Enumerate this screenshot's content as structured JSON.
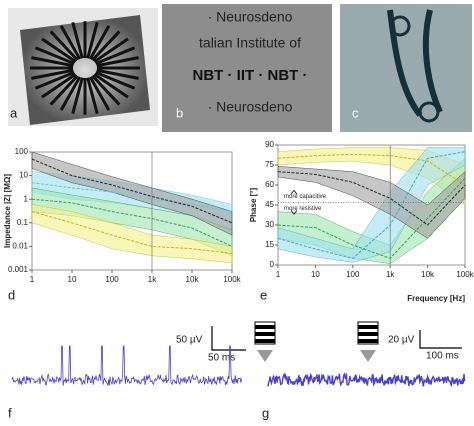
{
  "panel_labels": [
    "a",
    "b",
    "c",
    "d",
    "e",
    "f",
    "g"
  ],
  "photo_text": [
    "· Neurosdeno",
    "talian Institute of",
    "NBT · IIT · NBT ·",
    "· Neurosdeno"
  ],
  "scale_bars": {
    "f": [
      "50 µV",
      "50 ms"
    ],
    "g": [
      "20 µV",
      "100 ms"
    ]
  },
  "chart_data": [
    {
      "type": "line",
      "ylabel": "Impedance |Z| [MΩ]",
      "xlog": true,
      "ylog": true,
      "xlim": [
        1,
        100000
      ],
      "ylim": [
        0.001,
        100
      ],
      "xticks": [
        1,
        10,
        100,
        {
          "value": 1000,
          "label": "1k"
        },
        {
          "value": 10000,
          "label": "10k"
        },
        {
          "value": 100000,
          "label": "100k"
        }
      ],
      "yticks": [
        0.001,
        0.01,
        0.1,
        1,
        10,
        100
      ],
      "vline": 1000,
      "x": [
        1,
        10,
        100,
        1000,
        10000,
        100000
      ],
      "series": [
        {
          "color": "#5bc8e0",
          "band_color": "#9fe0ee",
          "values": [
            5,
            3,
            2,
            1,
            0.6,
            0.3
          ],
          "upper": [
            15,
            10,
            6,
            3,
            1.5,
            0.6
          ],
          "lower": [
            2,
            1,
            0.7,
            0.4,
            0.2,
            0.05
          ]
        },
        {
          "color": "#2e9e5a",
          "band_color": "#9fe6b0",
          "values": [
            1,
            0.7,
            0.3,
            0.15,
            0.06,
            0.01
          ],
          "upper": [
            3,
            1.5,
            0.8,
            0.4,
            0.2,
            0.05
          ],
          "lower": [
            0.3,
            0.2,
            0.1,
            0.05,
            0.02,
            0.004
          ]
        },
        {
          "color": "#c9b400",
          "band_color": "#f5f08a",
          "values": [
            0.3,
            0.1,
            0.03,
            0.01,
            0.008,
            0.005
          ],
          "upper": [
            0.6,
            0.3,
            0.1,
            0.03,
            0.02,
            0.01
          ],
          "lower": [
            0.1,
            0.03,
            0.008,
            0.004,
            0.003,
            0.002
          ]
        },
        {
          "color": "#222222",
          "band_color": "#a0a0a0",
          "values": [
            50,
            10,
            4,
            1.3,
            0.5,
            0.1
          ],
          "upper": [
            100,
            30,
            9,
            3,
            1,
            0.3
          ],
          "lower": [
            20,
            5,
            2,
            0.6,
            0.2,
            0.03
          ]
        }
      ]
    },
    {
      "type": "line",
      "ylabel": "Phase [°]",
      "xlabel": "Frequency [Hz]",
      "xlog": true,
      "ylog": false,
      "xlim": [
        1,
        100000
      ],
      "ylim": [
        0,
        90
      ],
      "xticks": [
        1,
        10,
        100,
        {
          "value": 1000,
          "label": "1k"
        },
        {
          "value": 10000,
          "label": "10k"
        },
        {
          "value": 100000,
          "label": "100k"
        }
      ],
      "yticks": [
        0,
        15,
        30,
        45,
        60,
        75,
        90
      ],
      "vline": 1000,
      "hline": 47,
      "annotations": [
        "more capacitive",
        "more resistive"
      ],
      "x": [
        1,
        10,
        100,
        1000,
        10000,
        100000
      ],
      "series": [
        {
          "color": "#c9b400",
          "band_color": "#f5f08a",
          "values": [
            80,
            82,
            83,
            82,
            78,
            60
          ],
          "upper": [
            85,
            87,
            88,
            88,
            86,
            75
          ],
          "lower": [
            75,
            77,
            78,
            75,
            65,
            45
          ]
        },
        {
          "color": "#2e9e5a",
          "band_color": "#9fe6b0",
          "values": [
            30,
            28,
            15,
            5,
            35,
            65
          ],
          "upper": [
            40,
            38,
            25,
            15,
            55,
            80
          ],
          "lower": [
            20,
            15,
            5,
            1,
            20,
            50
          ]
        },
        {
          "color": "#3aa8c8",
          "band_color": "#9fe0ee",
          "values": [
            20,
            12,
            5,
            30,
            80,
            85
          ],
          "upper": [
            28,
            20,
            12,
            55,
            88,
            88
          ],
          "lower": [
            12,
            6,
            2,
            10,
            60,
            75
          ]
        },
        {
          "color": "#222222",
          "band_color": "#a0a0a0",
          "values": [
            70,
            68,
            62,
            50,
            30,
            60
          ],
          "upper": [
            74,
            72,
            70,
            62,
            45,
            70
          ],
          "lower": [
            66,
            62,
            52,
            38,
            20,
            50
          ]
        }
      ]
    }
  ]
}
